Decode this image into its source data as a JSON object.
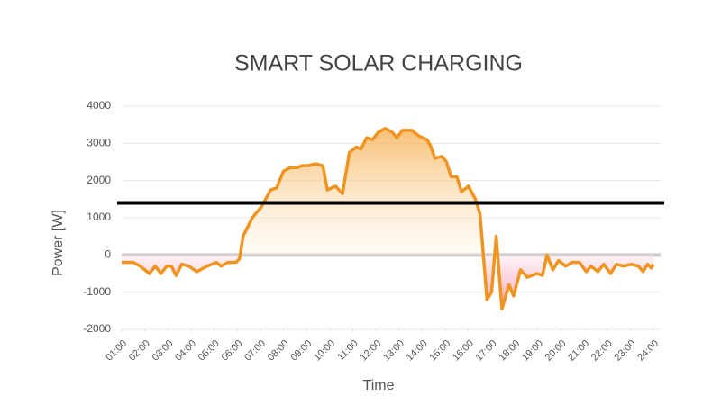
{
  "chart_data": {
    "type": "area-line",
    "title": "SMART SOLAR CHARGING",
    "x_label": "Time",
    "y_label": "Power [W]",
    "color": "#ef9420",
    "x": [
      1.0,
      1.5,
      1.8,
      2.2,
      2.45,
      2.7,
      2.95,
      3.15,
      3.35,
      3.6,
      3.9,
      4.25,
      4.7,
      5.1,
      5.3,
      5.6,
      5.95,
      6.1,
      6.25,
      6.65,
      7.05,
      7.45,
      7.7,
      8.0,
      8.3,
      8.6,
      8.8,
      9.05,
      9.4,
      9.7,
      9.9,
      10.25,
      10.55,
      10.85,
      11.15,
      11.35,
      11.6,
      11.85,
      12.1,
      12.4,
      12.7,
      12.9,
      13.15,
      13.55,
      13.85,
      14.2,
      14.35,
      14.55,
      14.85,
      15.05,
      15.25,
      15.5,
      15.7,
      16.0,
      16.3,
      16.5,
      16.8,
      17.0,
      17.2,
      17.45,
      17.75,
      17.95,
      18.25,
      18.55,
      18.95,
      19.2,
      19.4,
      19.65,
      19.9,
      20.2,
      20.5,
      20.8,
      21.1,
      21.3,
      21.6,
      21.85,
      22.15,
      22.4,
      22.7,
      23.05,
      23.35,
      23.55,
      23.75,
      23.9,
      24.0
    ],
    "values": [
      -200,
      -200,
      -300,
      -500,
      -300,
      -500,
      -300,
      -300,
      -550,
      -250,
      -300,
      -450,
      -300,
      -200,
      -300,
      -200,
      -200,
      -100,
      500,
      1000,
      1300,
      1750,
      1800,
      2250,
      2350,
      2350,
      2400,
      2400,
      2450,
      2400,
      1750,
      1850,
      1650,
      2750,
      2900,
      2850,
      3150,
      3100,
      3300,
      3400,
      3300,
      3150,
      3350,
      3350,
      3200,
      3100,
      2950,
      2600,
      2650,
      2500,
      2100,
      2100,
      1700,
      1850,
      1500,
      1100,
      -1200,
      -1000,
      500,
      -1450,
      -800,
      -1100,
      -400,
      -600,
      -500,
      -550,
      0,
      -400,
      -150,
      -300,
      -200,
      -200,
      -450,
      -300,
      -450,
      -250,
      -500,
      -250,
      -300,
      -250,
      -300,
      -450,
      -250,
      -350,
      -250
    ],
    "reference_line": 1400,
    "xlim": [
      1,
      24
    ],
    "xticks": [
      {
        "value": 1,
        "label": "01:00"
      },
      {
        "value": 2,
        "label": "02:00"
      },
      {
        "value": 3,
        "label": "03:00"
      },
      {
        "value": 4,
        "label": "04:00"
      },
      {
        "value": 5,
        "label": "05:00"
      },
      {
        "value": 6,
        "label": "06:00"
      },
      {
        "value": 7,
        "label": "07:00"
      },
      {
        "value": 8,
        "label": "08:00"
      },
      {
        "value": 9,
        "label": "09:00"
      },
      {
        "value": 10,
        "label": "10:00"
      },
      {
        "value": 11,
        "label": "11:00"
      },
      {
        "value": 12,
        "label": "12:00"
      },
      {
        "value": 13,
        "label": "13:00"
      },
      {
        "value": 14,
        "label": "14:00"
      },
      {
        "value": 15,
        "label": "15:00"
      },
      {
        "value": 16,
        "label": "16:00"
      },
      {
        "value": 17,
        "label": "17:00"
      },
      {
        "value": 18,
        "label": "18:00"
      },
      {
        "value": 19,
        "label": "19:00"
      },
      {
        "value": 20,
        "label": "20:00"
      },
      {
        "value": 21,
        "label": "21:00"
      },
      {
        "value": 22,
        "label": "22:00"
      },
      {
        "value": 23,
        "label": "23:00"
      },
      {
        "value": 24,
        "label": "24:00"
      }
    ],
    "ylim": [
      -2000,
      4000
    ],
    "yticks": [
      -2000,
      -1000,
      0,
      1000,
      2000,
      3000,
      4000
    ],
    "grid": true
  }
}
